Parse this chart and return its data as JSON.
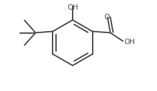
{
  "background_color": "#ffffff",
  "line_color": "#4a4a4a",
  "text_color": "#4a4a4a",
  "line_width": 1.4,
  "font_size": 7.5,
  "fig_width": 2.28,
  "fig_height": 1.32,
  "dpi": 100,
  "oh_label": "OH",
  "o_label": "O",
  "cooh_oh_label": "OH"
}
